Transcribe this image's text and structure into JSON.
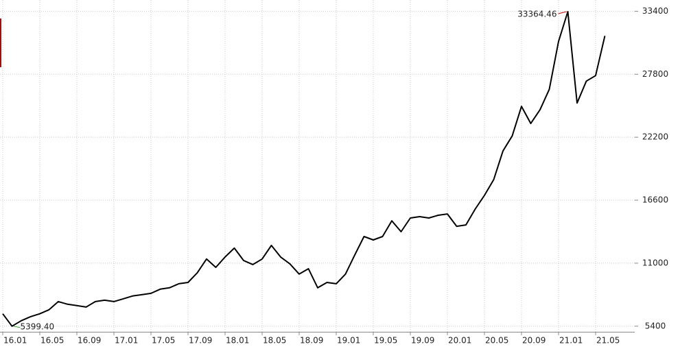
{
  "chart_data": {
    "type": "line",
    "categories": [
      "16.01",
      null,
      null,
      null,
      "16.05",
      null,
      null,
      null,
      "16.09",
      null,
      null,
      null,
      "17.01",
      null,
      null,
      null,
      "17.05",
      null,
      null,
      null,
      "17.09",
      null,
      null,
      null,
      "18.01",
      null,
      null,
      null,
      "18.05",
      null,
      null,
      null,
      "18.09",
      null,
      null,
      null,
      "19.01",
      null,
      null,
      null,
      "19.05",
      null,
      null,
      null,
      "19.09",
      null,
      null,
      null,
      "20.01",
      null,
      null,
      null,
      "20.05",
      null,
      null,
      null,
      "20.09",
      null,
      null,
      null,
      "21.01",
      null,
      null,
      null,
      "21.05",
      null
    ],
    "series": [
      {
        "color": "#000000",
        "values": [
          6500,
          5399.4,
          5890,
          6250,
          6500,
          6860,
          7590,
          7350,
          7230,
          7100,
          7590,
          7710,
          7590,
          7830,
          8080,
          8200,
          8320,
          8690,
          8810,
          9170,
          9290,
          10150,
          11370,
          10630,
          11550,
          12340,
          11240,
          10880,
          11370,
          12580,
          11550,
          10940,
          10030,
          10510,
          8810,
          9290,
          9170,
          10030,
          11730,
          13370,
          13070,
          13370,
          14770,
          13800,
          15020,
          15140,
          15020,
          15260,
          15380,
          14280,
          14400,
          15810,
          17030,
          18430,
          20980,
          22320,
          24940,
          23420,
          24640,
          26460,
          30720,
          33364.46,
          25240,
          27190,
          27680,
          31210
        ]
      }
    ],
    "max_label": "33364.46",
    "min_label": "5399.40",
    "max_color": "#c00000",
    "min_color": "#2a9a2a",
    "ylim": [
      4900,
      34400
    ],
    "yticks": [
      5400,
      11000,
      16600,
      22200,
      27800,
      33400
    ],
    "grid": true
  }
}
